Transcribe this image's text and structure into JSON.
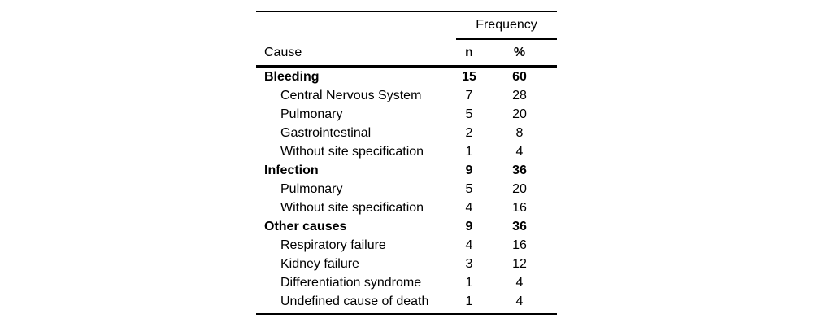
{
  "table": {
    "group_header": "Frequency",
    "columns": {
      "cause": "Cause",
      "n": "n",
      "pct": "%"
    },
    "rows": [
      {
        "cause": "Bleeding",
        "n": "15",
        "pct": "60",
        "bold": true,
        "indent": false
      },
      {
        "cause": "Central Nervous System",
        "n": "7",
        "pct": "28",
        "bold": false,
        "indent": true
      },
      {
        "cause": "Pulmonary",
        "n": "5",
        "pct": "20",
        "bold": false,
        "indent": true
      },
      {
        "cause": "Gastrointestinal",
        "n": "2",
        "pct": "8",
        "bold": false,
        "indent": true
      },
      {
        "cause": "Without site specification",
        "n": "1",
        "pct": "4",
        "bold": false,
        "indent": true
      },
      {
        "cause": "Infection",
        "n": "9",
        "pct": "36",
        "bold": true,
        "indent": false
      },
      {
        "cause": "Pulmonary",
        "n": "5",
        "pct": "20",
        "bold": false,
        "indent": true
      },
      {
        "cause": "Without site specification",
        "n": "4",
        "pct": "16",
        "bold": false,
        "indent": true
      },
      {
        "cause": "Other causes",
        "n": "9",
        "pct": "36",
        "bold": true,
        "indent": false
      },
      {
        "cause": "Respiratory failure",
        "n": "4",
        "pct": "16",
        "bold": false,
        "indent": true
      },
      {
        "cause": "Kidney failure",
        "n": "3",
        "pct": "12",
        "bold": false,
        "indent": true
      },
      {
        "cause": "Differentiation syndrome",
        "n": "1",
        "pct": "4",
        "bold": false,
        "indent": true
      },
      {
        "cause": "Undefined cause of death",
        "n": "1",
        "pct": "4",
        "bold": false,
        "indent": true
      }
    ],
    "colors": {
      "text": "#000000",
      "rule": "#000000",
      "background": "#ffffff"
    }
  },
  "chart_data": {
    "type": "table",
    "title": "",
    "column_group_header": "Frequency",
    "columns": [
      "Cause",
      "n",
      "%"
    ],
    "rows": [
      [
        "Bleeding",
        15,
        60
      ],
      [
        "Central Nervous System",
        7,
        28
      ],
      [
        "Pulmonary",
        5,
        20
      ],
      [
        "Gastrointestinal",
        2,
        8
      ],
      [
        "Without site specification",
        1,
        4
      ],
      [
        "Infection",
        9,
        36
      ],
      [
        "Pulmonary",
        5,
        20
      ],
      [
        "Without site specification",
        4,
        16
      ],
      [
        "Other causes",
        9,
        36
      ],
      [
        "Respiratory failure",
        4,
        16
      ],
      [
        "Kidney failure",
        3,
        12
      ],
      [
        "Differentiation syndrome",
        1,
        4
      ],
      [
        "Undefined cause of death",
        1,
        4
      ]
    ]
  }
}
